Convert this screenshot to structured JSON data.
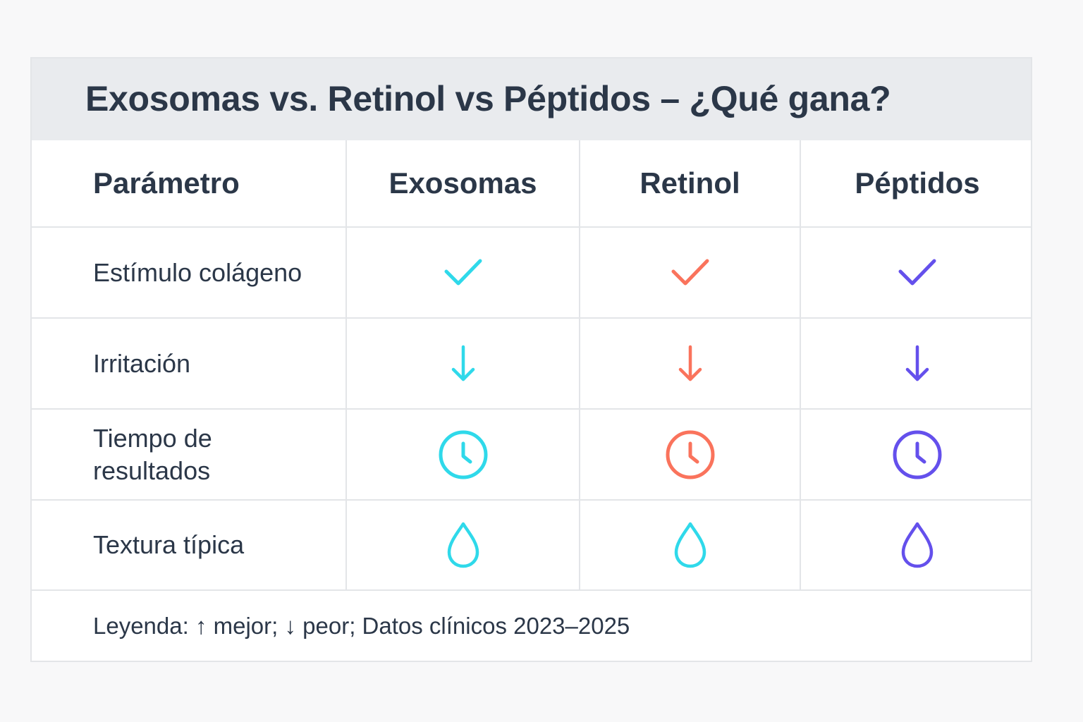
{
  "title": "Exosomas vs. Retinol vs  Péptidos – ¿Qué gana?",
  "columns": [
    "Parámetro",
    "Exosomas",
    "Retinol",
    "Péptidos"
  ],
  "colors": {
    "exosomas": "#2fd9ea",
    "retinol": "#fa735c",
    "peptidos": "#6450ec",
    "text": "#2b3748",
    "header_bg": "#e9ebee"
  },
  "rows": [
    {
      "label": "Estímulo colágeno",
      "icons": [
        {
          "name": "check-icon",
          "color": "#2fd9ea"
        },
        {
          "name": "check-icon",
          "color": "#fa735c"
        },
        {
          "name": "check-icon",
          "color": "#6450ec"
        }
      ]
    },
    {
      "label": "Irritación",
      "icons": [
        {
          "name": "arrow-down-icon",
          "color": "#2fd9ea"
        },
        {
          "name": "arrow-down-icon",
          "color": "#fa735c"
        },
        {
          "name": "arrow-down-icon",
          "color": "#6450ec"
        }
      ]
    },
    {
      "label": "Tiempo de resultados",
      "label_lines": [
        "Tiempo de",
        "resultados"
      ],
      "icons": [
        {
          "name": "clock-icon",
          "color": "#2fd9ea"
        },
        {
          "name": "clock-icon",
          "color": "#fa735c"
        },
        {
          "name": "clock-icon",
          "color": "#6450ec"
        }
      ]
    },
    {
      "label": "Textura típica",
      "icons": [
        {
          "name": "droplet-icon",
          "color": "#2fd9ea"
        },
        {
          "name": "droplet-icon",
          "color": "#2fd9ea"
        },
        {
          "name": "droplet-icon",
          "color": "#6450ec"
        }
      ]
    }
  ],
  "legend": "Leyenda: ↑ mejor; ↓ peor; Datos clínicos 2023–2025"
}
